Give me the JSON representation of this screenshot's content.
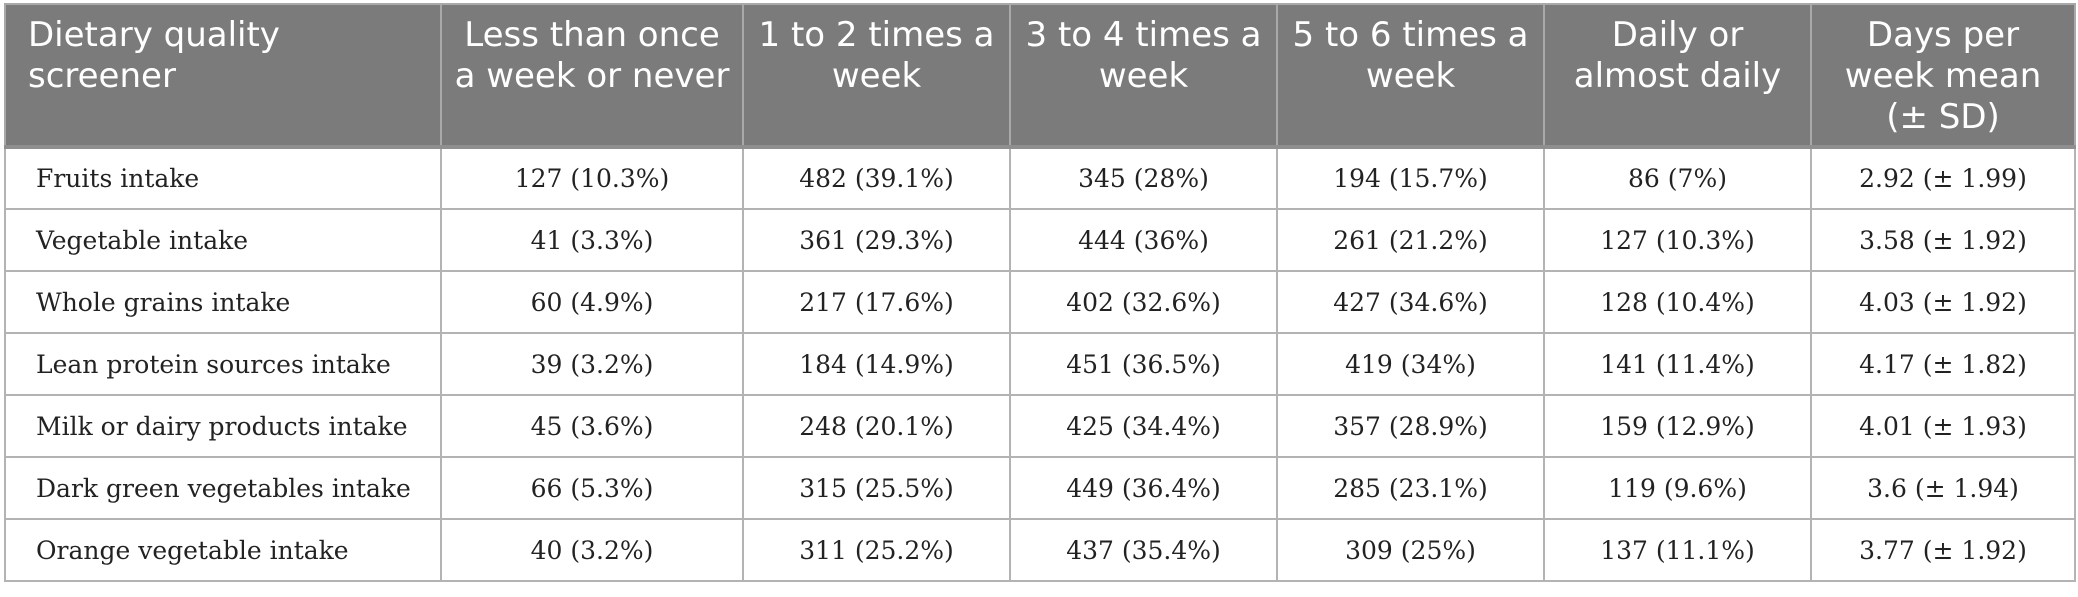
{
  "table": {
    "headers": [
      "Dietary quality screener",
      "Less than once a week or never",
      "1 to 2 times a week",
      "3 to 4 times a week",
      "5 to 6 times a week",
      "Daily or almost daily",
      "Days per week mean (± SD)"
    ],
    "rows": [
      [
        "Fruits intake",
        "127 (10.3%)",
        "482 (39.1%)",
        "345 (28%)",
        "194 (15.7%)",
        "86 (7%)",
        "2.92 (± 1.99)"
      ],
      [
        "Vegetable intake",
        "41 (3.3%)",
        "361 (29.3%)",
        "444 (36%)",
        "261 (21.2%)",
        "127 (10.3%)",
        "3.58 (± 1.92)"
      ],
      [
        "Whole grains intake",
        "60 (4.9%)",
        "217 (17.6%)",
        "402 (32.6%)",
        "427 (34.6%)",
        "128 (10.4%)",
        "4.03 (± 1.92)"
      ],
      [
        "Lean protein sources intake",
        "39 (3.2%)",
        "184 (14.9%)",
        "451 (36.5%)",
        "419 (34%)",
        "141 (11.4%)",
        "4.17 (± 1.82)"
      ],
      [
        "Milk or dairy products intake",
        "45 (3.6%)",
        "248 (20.1%)",
        "425 (34.4%)",
        "357 (28.9%)",
        "159 (12.9%)",
        "4.01 (± 1.93)"
      ],
      [
        "Dark green vegetables intake",
        "66 (5.3%)",
        "315 (25.5%)",
        "449 (36.4%)",
        "285 (23.1%)",
        "119 (9.6%)",
        "3.6 (± 1.94)"
      ],
      [
        "Orange vegetable intake",
        "40 (3.2%)",
        "311 (25.2%)",
        "437 (35.4%)",
        "309 (25%)",
        "137 (11.1%)",
        "3.77 (± 1.92)"
      ]
    ]
  }
}
